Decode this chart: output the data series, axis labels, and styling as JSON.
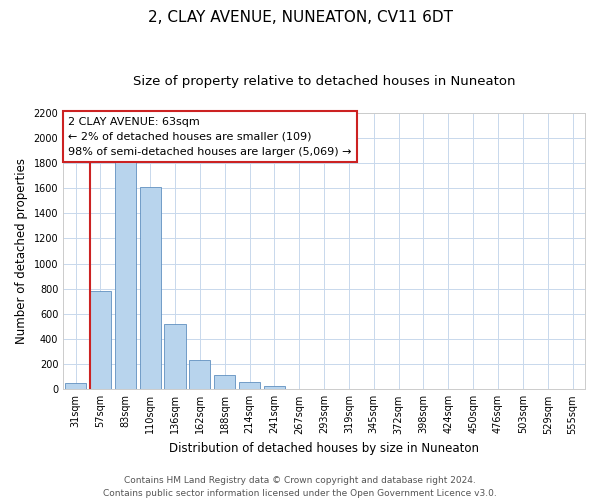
{
  "title": "2, CLAY AVENUE, NUNEATON, CV11 6DT",
  "subtitle": "Size of property relative to detached houses in Nuneaton",
  "xlabel": "Distribution of detached houses by size in Nuneaton",
  "ylabel": "Number of detached properties",
  "bar_labels": [
    "31sqm",
    "57sqm",
    "83sqm",
    "110sqm",
    "136sqm",
    "162sqm",
    "188sqm",
    "214sqm",
    "241sqm",
    "267sqm",
    "293sqm",
    "319sqm",
    "345sqm",
    "372sqm",
    "398sqm",
    "424sqm",
    "450sqm",
    "476sqm",
    "503sqm",
    "529sqm",
    "555sqm"
  ],
  "bar_values": [
    50,
    780,
    1820,
    1610,
    520,
    230,
    110,
    55,
    25,
    0,
    0,
    0,
    0,
    0,
    0,
    0,
    0,
    0,
    0,
    0,
    0
  ],
  "bar_color": "#b8d4ed",
  "bar_edge_color": "#6090c0",
  "ylim": [
    0,
    2200
  ],
  "yticks": [
    0,
    200,
    400,
    600,
    800,
    1000,
    1200,
    1400,
    1600,
    1800,
    2000,
    2200
  ],
  "vline_x_index": 1,
  "vline_color": "#cc2222",
  "annotation_title": "2 CLAY AVENUE: 63sqm",
  "annotation_line1": "← 2% of detached houses are smaller (109)",
  "annotation_line2": "98% of semi-detached houses are larger (5,069) →",
  "annotation_box_facecolor": "#ffffff",
  "annotation_box_edgecolor": "#cc2222",
  "footer_line1": "Contains HM Land Registry data © Crown copyright and database right 2024.",
  "footer_line2": "Contains public sector information licensed under the Open Government Licence v3.0.",
  "background_color": "#ffffff",
  "grid_color": "#c8d8ec",
  "title_fontsize": 11,
  "subtitle_fontsize": 9.5,
  "ylabel_fontsize": 8.5,
  "xlabel_fontsize": 8.5,
  "tick_fontsize": 7,
  "annotation_fontsize": 8,
  "footer_fontsize": 6.5
}
